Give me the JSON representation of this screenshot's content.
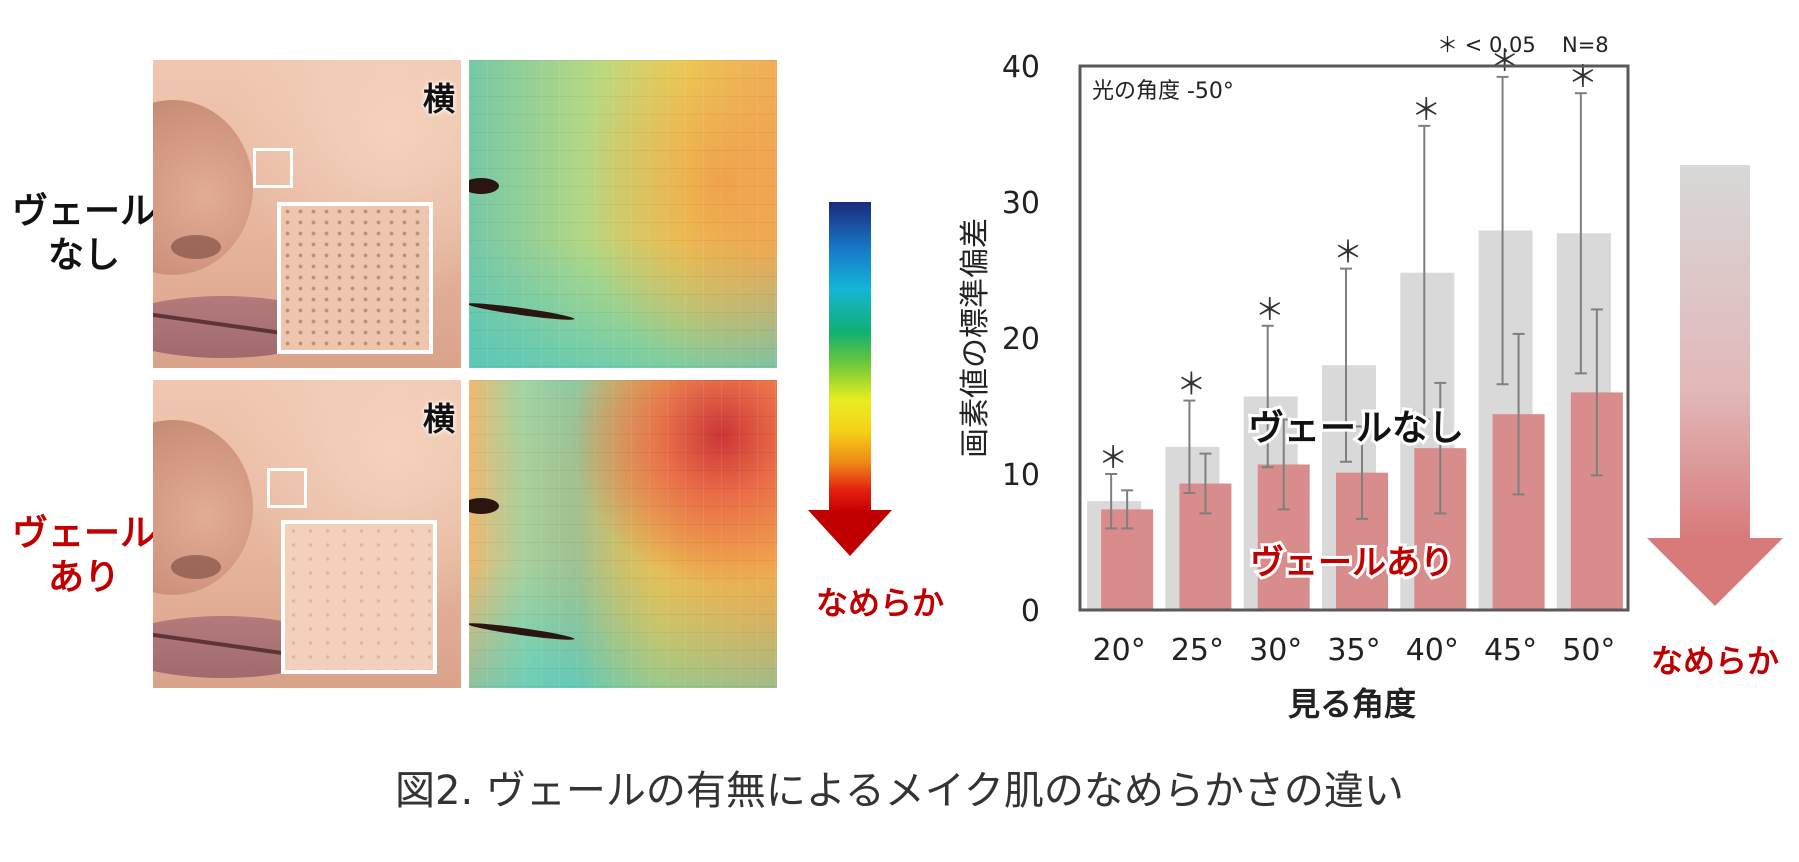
{
  "left_panel": {
    "row1_label_line1": "ヴェール",
    "row1_label_line2": "なし",
    "row2_label_line1": "ヴェール",
    "row2_label_line2": "あり",
    "photo_tag": "横",
    "scale_label": "なめらか"
  },
  "right_arrow_label": "なめらか",
  "caption": "図2. ヴェールの有無によるメイク肌のなめらかさの違い",
  "colors": {
    "without_veil": "#d9d9d9",
    "with_veil": "#d98c8c",
    "accent_red": "#c00000",
    "error_bar": "#7f7f7f"
  },
  "chart_data": {
    "type": "bar",
    "xlabel": "見る角度",
    "ylabel": "画素値の標準偏差",
    "ylim": [
      0,
      40
    ],
    "yticks": [
      0,
      10,
      20,
      30,
      40
    ],
    "categories": [
      "20°",
      "25°",
      "30°",
      "35°",
      "40°",
      "45°",
      "50°"
    ],
    "annotation_top_left": "光の角度 -50°",
    "significance_note": "＊ < 0.05",
    "sample_size": "N=8",
    "significance_marker": "＊",
    "series": [
      {
        "name": "ヴェールなし",
        "values": [
          8.0,
          12.0,
          15.7,
          18.0,
          24.8,
          27.9,
          27.7
        ],
        "errors": [
          2.0,
          3.4,
          5.2,
          7.1,
          10.8,
          11.3,
          10.3
        ]
      },
      {
        "name": "ヴェールあり",
        "values": [
          7.4,
          9.3,
          10.7,
          10.1,
          11.9,
          14.4,
          16.0
        ],
        "errors": [
          1.4,
          2.2,
          3.3,
          3.4,
          4.8,
          5.9,
          6.1
        ]
      }
    ],
    "significant": [
      true,
      true,
      true,
      true,
      true,
      true,
      true
    ],
    "grid": false
  }
}
